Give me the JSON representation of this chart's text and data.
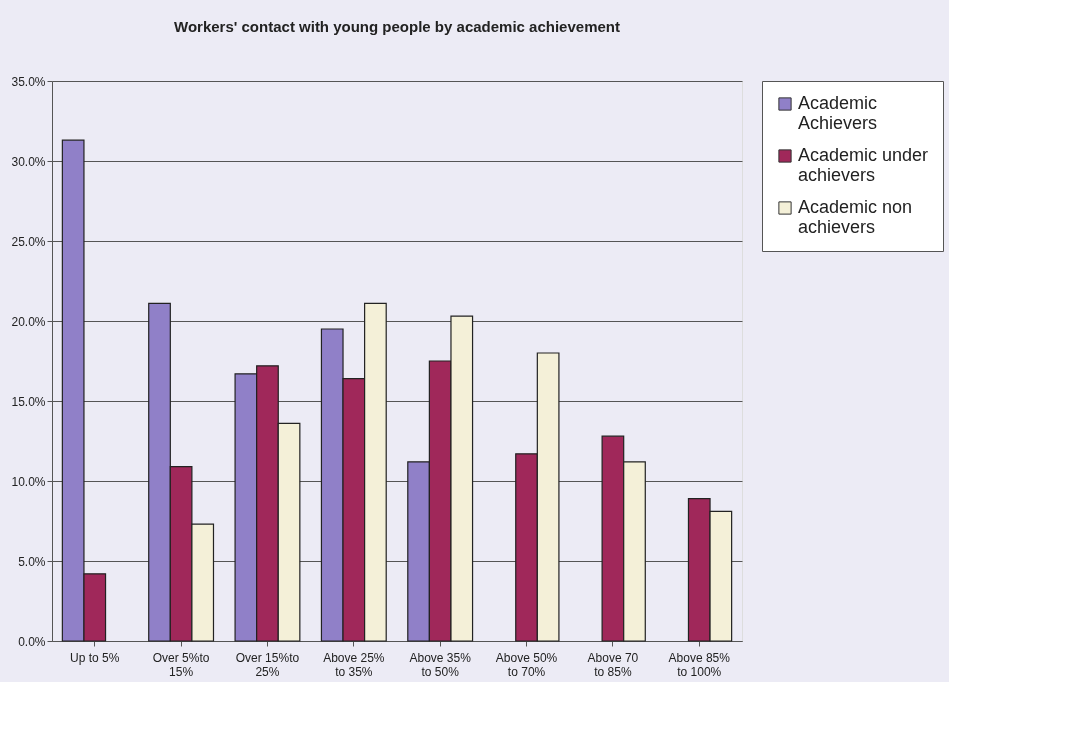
{
  "chart_data": {
    "type": "bar",
    "title": "Workers' contact with young people by academic achievement",
    "categories": [
      "Up to 5%",
      "Over 5%to 15%",
      "Over 15%to 25%",
      "Above 25% to 35%",
      "Above 35% to 50%",
      "Above 50% to 70%",
      "Above 70 to 85%",
      "Above 85% to 100%"
    ],
    "series": [
      {
        "name": "Academic Achievers",
        "color": "#9080c8",
        "values": [
          31.3,
          21.1,
          16.7,
          19.5,
          11.2,
          null,
          null,
          null
        ]
      },
      {
        "name": "Academic under achievers",
        "color": "#a0285a",
        "values": [
          4.2,
          10.9,
          17.2,
          16.4,
          17.5,
          11.7,
          12.8,
          8.9
        ]
      },
      {
        "name": "Academic non achievers",
        "color": "#f4f0d8",
        "values": [
          null,
          7.3,
          13.6,
          21.1,
          20.3,
          18.0,
          11.2,
          8.1
        ]
      }
    ],
    "ylim": [
      0,
      35
    ],
    "yticks": [
      {
        "value": 0,
        "label": "0.0%"
      },
      {
        "value": 5,
        "label": "5.0%"
      },
      {
        "value": 10,
        "label": "10.0%"
      },
      {
        "value": 15,
        "label": "15.0%"
      },
      {
        "value": 20,
        "label": "20.0%"
      },
      {
        "value": 25,
        "label": "25.0%"
      },
      {
        "value": 30,
        "label": "30.0%"
      },
      {
        "value": 35,
        "label": "35.0%"
      }
    ],
    "grid": "y",
    "legend": "right"
  }
}
